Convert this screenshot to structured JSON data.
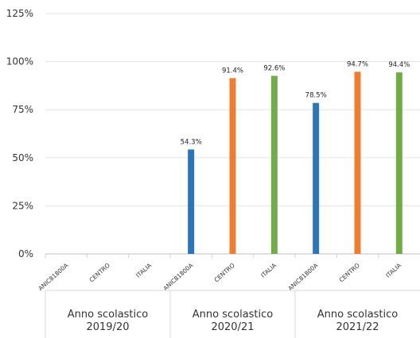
{
  "chart_data": {
    "type": "bar",
    "y_ticks": [
      "0%",
      "25%",
      "50%",
      "75%",
      "100%",
      "125%"
    ],
    "ylim": [
      0,
      125
    ],
    "groups": [
      {
        "label_line1": "Anno scolastico",
        "label_line2": "2019/20",
        "bars": [
          {
            "label": "ANIC81800A",
            "value": null,
            "value_label": "",
            "color": "#2e75b6"
          },
          {
            "label": "CENTRO",
            "value": null,
            "value_label": "",
            "color": "#ed7d31"
          },
          {
            "label": "ITALIA",
            "value": null,
            "value_label": "",
            "color": "#70ad47"
          }
        ]
      },
      {
        "label_line1": "Anno scolastico",
        "label_line2": "2020/21",
        "bars": [
          {
            "label": "ANIC81800A",
            "value": 54.3,
            "value_label": "54.3%",
            "color": "#2e75b6"
          },
          {
            "label": "CENTRO",
            "value": 91.4,
            "value_label": "91.4%",
            "color": "#ed7d31"
          },
          {
            "label": "ITALIA",
            "value": 92.6,
            "value_label": "92.6%",
            "color": "#70ad47"
          }
        ]
      },
      {
        "label_line1": "Anno scolastico",
        "label_line2": "2021/22",
        "bars": [
          {
            "label": "ANIC81800A",
            "value": 78.5,
            "value_label": "78.5%",
            "color": "#2e75b6"
          },
          {
            "label": "CENTRO",
            "value": 94.7,
            "value_label": "94.7%",
            "color": "#ed7d31"
          },
          {
            "label": "ITALIA",
            "value": 94.4,
            "value_label": "94.4%",
            "color": "#70ad47"
          }
        ]
      }
    ],
    "grid": true,
    "legend": "none"
  }
}
